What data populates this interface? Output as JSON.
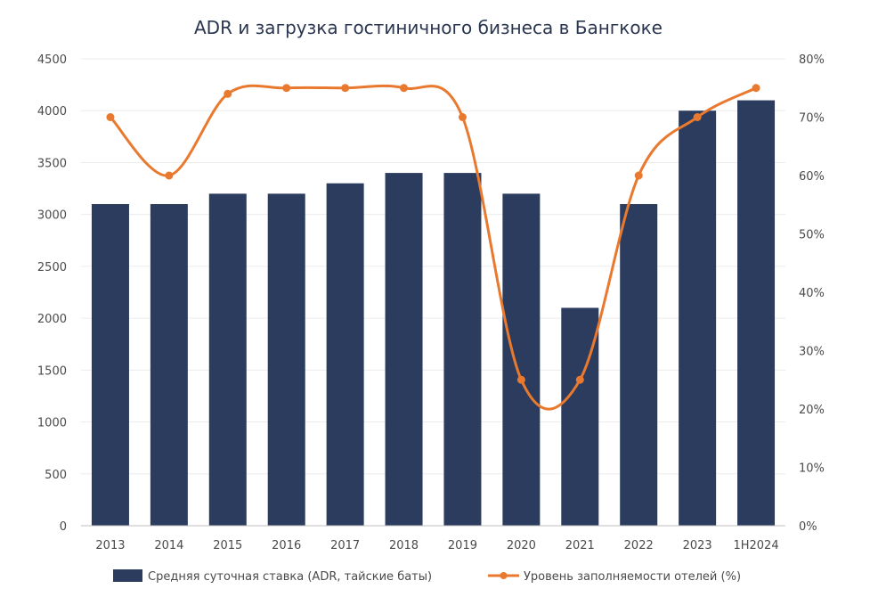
{
  "chart_data": {
    "type": "bar",
    "title": "ADR и загрузка гостиничного бизнеса в Бангкоке",
    "categories": [
      "2013",
      "2014",
      "2015",
      "2016",
      "2017",
      "2018",
      "2019",
      "2020",
      "2021",
      "2022",
      "2023",
      "1H2024"
    ],
    "series": [
      {
        "name": "Средняя суточная ставка (ADR, тайские баты)",
        "type": "bar",
        "axis": "left",
        "color": "#2c3c5e",
        "values": [
          3100,
          3100,
          3200,
          3200,
          3300,
          3400,
          3400,
          3200,
          2100,
          3100,
          4000,
          4100
        ]
      },
      {
        "name": "Уровень заполняемости отелей (%)",
        "type": "line",
        "axis": "right",
        "color": "#e8792f",
        "values": [
          70,
          60,
          74,
          75,
          75,
          75,
          70,
          25,
          25,
          60,
          70,
          75
        ]
      }
    ],
    "y_left": {
      "min": 0,
      "max": 4500,
      "ticks": [
        "0",
        "500",
        "1000",
        "1500",
        "2000",
        "2500",
        "3000",
        "3500",
        "4000",
        "4500"
      ]
    },
    "y_right": {
      "min": 0,
      "max": 80,
      "ticks": [
        "0%",
        "10%",
        "20%",
        "30%",
        "40%",
        "50%",
        "60%",
        "70%",
        "80%"
      ]
    },
    "grid": true,
    "legend_position": "bottom"
  }
}
